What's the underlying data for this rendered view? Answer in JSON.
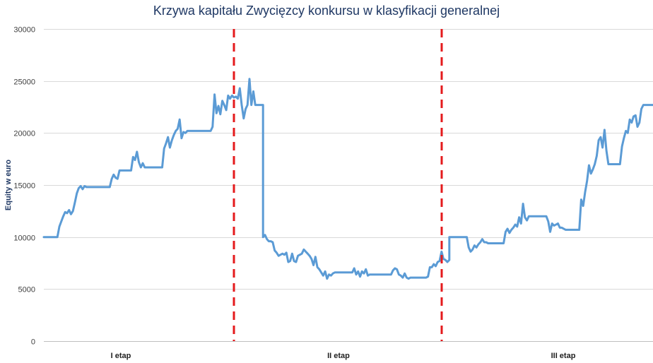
{
  "chart_data": {
    "type": "line",
    "title": "Krzywa kapitału Zwycięzcy konkursu w klasyfikacji generalnej",
    "ylabel": "Equity w euro",
    "xlabel": "",
    "ylim": [
      0,
      30000
    ],
    "yticks": [
      0,
      5000,
      10000,
      15000,
      20000,
      25000,
      30000
    ],
    "xlim": [
      0,
      300
    ],
    "grid": true,
    "legend": "none",
    "colors": {
      "line": "#5b9bd5",
      "divider": "#e41a1c",
      "title": "#1f3864"
    },
    "stages": [
      {
        "label": "I etap",
        "start": 0,
        "end": 95
      },
      {
        "label": "II etap",
        "start": 95,
        "end": 200
      },
      {
        "label": "III etap",
        "start": 200,
        "end": 300
      }
    ],
    "dividers": [
      95,
      200
    ],
    "series": [
      {
        "values": [
          [
            0,
            10000
          ],
          [
            7,
            10000
          ],
          [
            8,
            11000
          ],
          [
            9,
            11500
          ],
          [
            10,
            12000
          ],
          [
            11,
            12400
          ],
          [
            12,
            12300
          ],
          [
            13,
            12600
          ],
          [
            14,
            12200
          ],
          [
            15,
            12500
          ],
          [
            16,
            13300
          ],
          [
            17,
            14200
          ],
          [
            18,
            14700
          ],
          [
            19,
            14900
          ],
          [
            20,
            14600
          ],
          [
            21,
            14900
          ],
          [
            22,
            14800
          ],
          [
            27,
            14800
          ],
          [
            28,
            14800
          ],
          [
            33,
            14800
          ],
          [
            34,
            14800
          ],
          [
            35,
            15600
          ],
          [
            36,
            16000
          ],
          [
            37,
            15700
          ],
          [
            38,
            15600
          ],
          [
            39,
            16400
          ],
          [
            45,
            16400
          ],
          [
            46,
            17700
          ],
          [
            47,
            17400
          ],
          [
            48,
            18200
          ],
          [
            49,
            17200
          ],
          [
            50,
            16700
          ],
          [
            51,
            17100
          ],
          [
            52,
            16700
          ],
          [
            60,
            16700
          ],
          [
            61,
            16700
          ],
          [
            62,
            18500
          ],
          [
            63,
            19000
          ],
          [
            64,
            19600
          ],
          [
            65,
            18600
          ],
          [
            66,
            19300
          ],
          [
            67,
            19800
          ],
          [
            68,
            20200
          ],
          [
            69,
            20400
          ],
          [
            70,
            21300
          ],
          [
            71,
            19500
          ],
          [
            72,
            20100
          ],
          [
            73,
            20000
          ],
          [
            74,
            20200
          ],
          [
            85,
            20200
          ],
          [
            86,
            20200
          ],
          [
            87,
            20600
          ],
          [
            88,
            23700
          ],
          [
            89,
            21900
          ],
          [
            90,
            22600
          ],
          [
            91,
            21800
          ],
          [
            92,
            23100
          ],
          [
            93,
            22700
          ],
          [
            94,
            22200
          ],
          [
            95,
            23600
          ],
          [
            96,
            23300
          ],
          [
            97,
            23600
          ],
          [
            98,
            23400
          ],
          [
            99,
            23500
          ],
          [
            100,
            23300
          ],
          [
            101,
            24300
          ],
          [
            102,
            22700
          ],
          [
            103,
            21400
          ],
          [
            104,
            22300
          ],
          [
            105,
            22700
          ],
          [
            106,
            25200
          ],
          [
            107,
            22700
          ],
          [
            108,
            24000
          ],
          [
            109,
            22700
          ],
          [
            112,
            22700
          ],
          [
            113,
            22700
          ],
          [
            113,
            10000
          ],
          [
            114,
            10200
          ],
          [
            115,
            9800
          ],
          [
            116,
            9600
          ],
          [
            117,
            9600
          ],
          [
            118,
            9500
          ],
          [
            119,
            8700
          ],
          [
            120,
            8500
          ],
          [
            121,
            8200
          ],
          [
            122,
            8300
          ],
          [
            123,
            8400
          ],
          [
            124,
            8300
          ],
          [
            125,
            8500
          ],
          [
            126,
            7600
          ],
          [
            127,
            7700
          ],
          [
            128,
            8400
          ],
          [
            129,
            7700
          ],
          [
            130,
            7600
          ],
          [
            131,
            8200
          ],
          [
            132,
            8300
          ],
          [
            133,
            8400
          ],
          [
            134,
            8800
          ],
          [
            135,
            8600
          ],
          [
            136,
            8400
          ],
          [
            137,
            8200
          ],
          [
            138,
            7900
          ],
          [
            139,
            7300
          ],
          [
            140,
            8100
          ],
          [
            141,
            7100
          ],
          [
            142,
            6900
          ],
          [
            143,
            6600
          ],
          [
            144,
            6300
          ],
          [
            145,
            6700
          ],
          [
            146,
            6000
          ],
          [
            147,
            6400
          ],
          [
            148,
            6300
          ],
          [
            149,
            6500
          ],
          [
            150,
            6600
          ],
          [
            158,
            6600
          ],
          [
            159,
            6600
          ],
          [
            160,
            7000
          ],
          [
            161,
            6400
          ],
          [
            162,
            6700
          ],
          [
            163,
            6200
          ],
          [
            164,
            6700
          ],
          [
            165,
            6500
          ],
          [
            166,
            6900
          ],
          [
            167,
            6300
          ],
          [
            168,
            6400
          ],
          [
            178,
            6400
          ],
          [
            179,
            6400
          ],
          [
            180,
            6800
          ],
          [
            181,
            7000
          ],
          [
            182,
            6900
          ],
          [
            183,
            6400
          ],
          [
            184,
            6300
          ],
          [
            185,
            6100
          ],
          [
            186,
            6500
          ],
          [
            187,
            6100
          ],
          [
            188,
            6000
          ],
          [
            189,
            6100
          ],
          [
            195,
            6100
          ],
          [
            196,
            6100
          ],
          [
            197,
            6100
          ],
          [
            198,
            6200
          ],
          [
            199,
            7100
          ],
          [
            200,
            7100
          ],
          [
            201,
            7400
          ],
          [
            202,
            7200
          ],
          [
            203,
            7600
          ],
          [
            204,
            7700
          ],
          [
            205,
            8600
          ],
          [
            206,
            7900
          ],
          [
            207,
            7800
          ],
          [
            208,
            7600
          ],
          [
            209,
            7800
          ],
          [
            209,
            10000
          ],
          [
            217,
            10000
          ],
          [
            218,
            10000
          ],
          [
            219,
            9000
          ],
          [
            220,
            8600
          ],
          [
            221,
            8800
          ],
          [
            222,
            9200
          ],
          [
            223,
            9000
          ],
          [
            224,
            9300
          ],
          [
            225,
            9500
          ],
          [
            226,
            9800
          ],
          [
            227,
            9500
          ],
          [
            228,
            9500
          ],
          [
            229,
            9400
          ],
          [
            230,
            9400
          ],
          [
            236,
            9400
          ],
          [
            237,
            9400
          ],
          [
            238,
            10500
          ],
          [
            239,
            10800
          ],
          [
            240,
            10400
          ],
          [
            241,
            10700
          ],
          [
            242,
            10900
          ],
          [
            243,
            11200
          ],
          [
            244,
            11000
          ],
          [
            245,
            11900
          ],
          [
            246,
            11300
          ],
          [
            247,
            13200
          ],
          [
            248,
            11900
          ],
          [
            249,
            11600
          ],
          [
            250,
            12000
          ],
          [
            258,
            12000
          ],
          [
            259,
            12000
          ],
          [
            260,
            11500
          ],
          [
            261,
            10500
          ],
          [
            262,
            11300
          ],
          [
            263,
            11100
          ],
          [
            264,
            11200
          ],
          [
            265,
            11300
          ],
          [
            266,
            10900
          ],
          [
            267,
            10900
          ],
          [
            268,
            10800
          ],
          [
            269,
            10700
          ],
          [
            270,
            10700
          ],
          [
            275,
            10700
          ],
          [
            276,
            10700
          ],
          [
            277,
            13600
          ],
          [
            278,
            13000
          ],
          [
            279,
            14300
          ],
          [
            280,
            15400
          ],
          [
            281,
            16900
          ],
          [
            282,
            16100
          ],
          [
            283,
            16500
          ],
          [
            284,
            17000
          ],
          [
            285,
            17800
          ],
          [
            286,
            19300
          ],
          [
            287,
            19600
          ],
          [
            288,
            18600
          ],
          [
            289,
            20300
          ],
          [
            290,
            18300
          ],
          [
            291,
            17000
          ],
          [
            296,
            17000
          ],
          [
            297,
            17000
          ],
          [
            298,
            18700
          ],
          [
            299,
            19500
          ],
          [
            300,
            20200
          ],
          [
            301,
            20000
          ],
          [
            302,
            21300
          ],
          [
            303,
            21000
          ],
          [
            304,
            21600
          ],
          [
            305,
            21700
          ],
          [
            306,
            20600
          ],
          [
            307,
            21000
          ],
          [
            308,
            22300
          ],
          [
            309,
            22700
          ],
          [
            314,
            22700
          ]
        ]
      }
    ]
  }
}
